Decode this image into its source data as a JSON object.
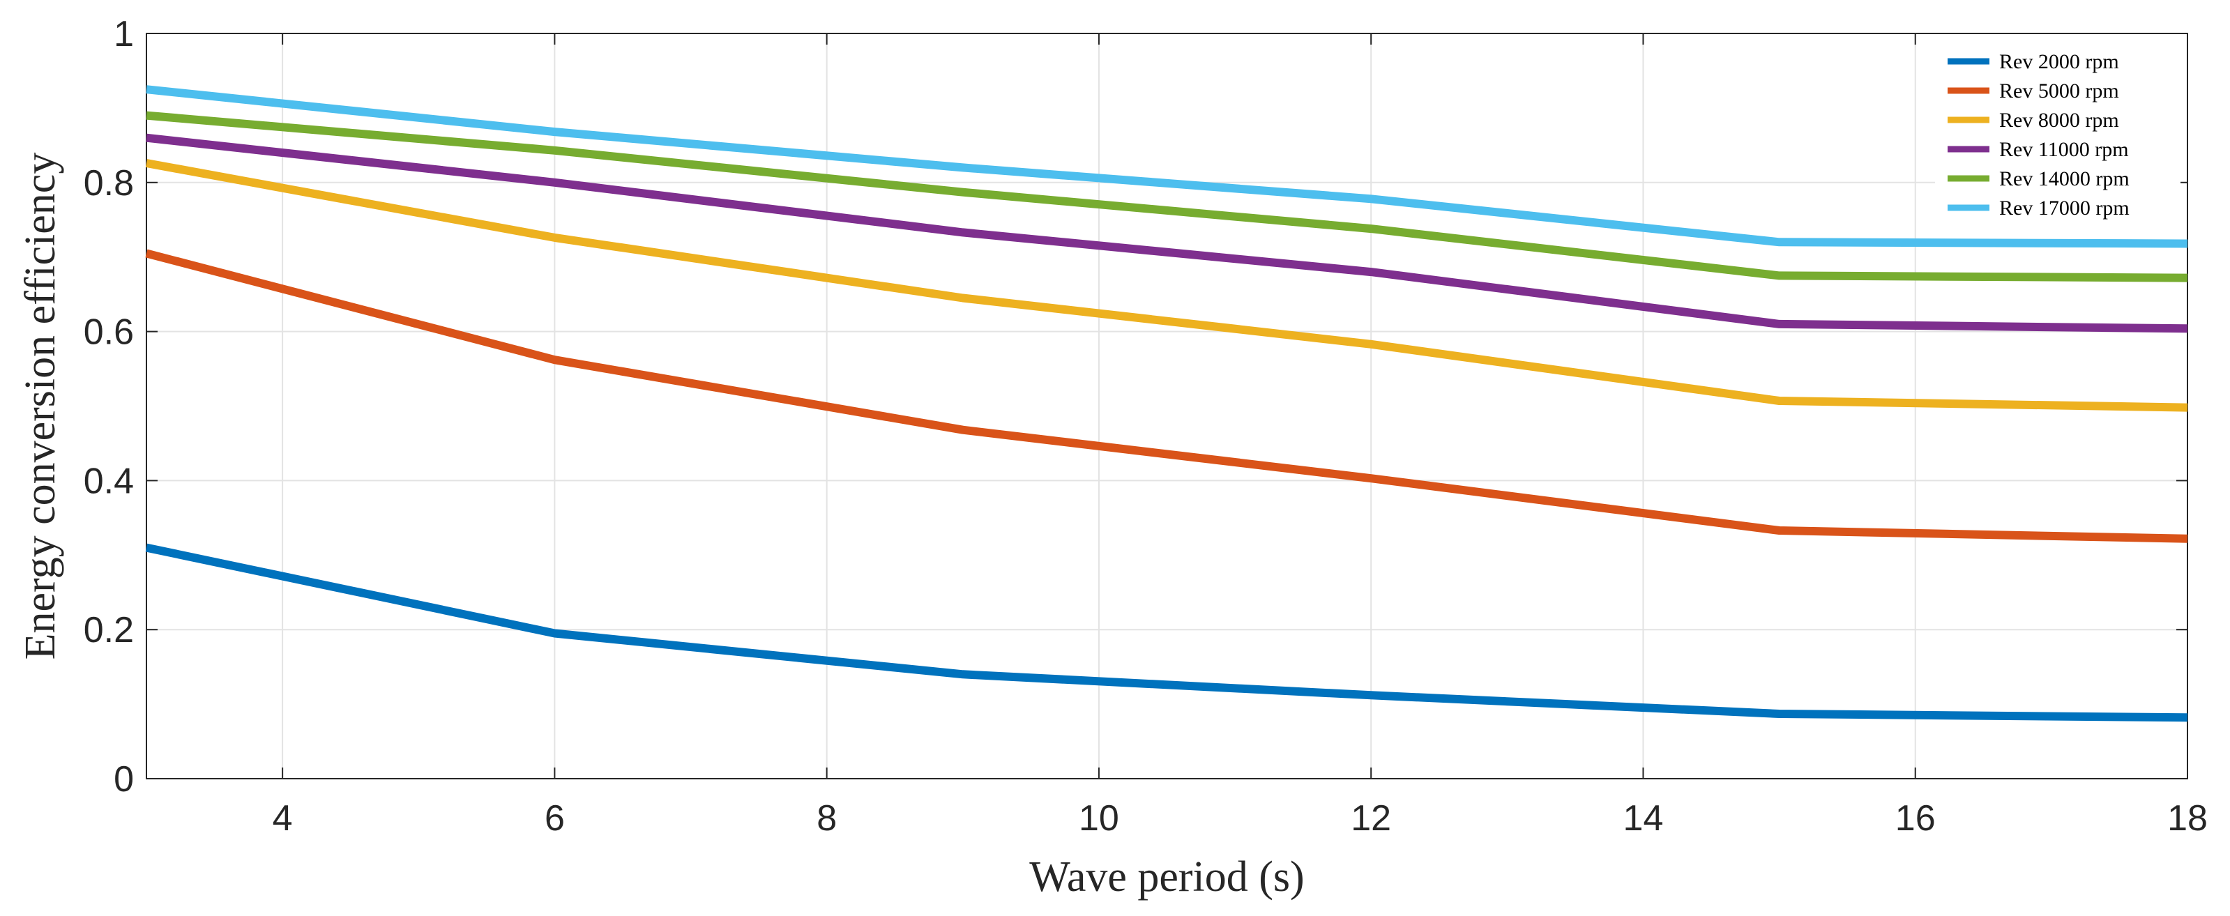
{
  "chart_data": {
    "type": "line",
    "title": "",
    "xlabel": "Wave period (s)",
    "ylabel": "Energy conversion efficiency",
    "xlim": [
      3,
      18
    ],
    "ylim": [
      0,
      1
    ],
    "xticks": [
      4,
      6,
      8,
      10,
      12,
      14,
      16,
      18
    ],
    "yticks": [
      0,
      0.2,
      0.4,
      0.6,
      0.8,
      1
    ],
    "xtick_labels": [
      "4",
      "6",
      "8",
      "10",
      "12",
      "14",
      "16",
      "18"
    ],
    "ytick_labels": [
      "0",
      "0.2",
      "0.4",
      "0.6",
      "0.8",
      "1"
    ],
    "grid": true,
    "legend_position": "top-right",
    "x": [
      3,
      6,
      9,
      12,
      15,
      18
    ],
    "series": [
      {
        "name": "Rev 2000 rpm",
        "color": "#0072BD",
        "values": [
          0.31,
          0.195,
          0.14,
          0.112,
          0.087,
          0.082
        ]
      },
      {
        "name": "Rev 5000 rpm",
        "color": "#D95319",
        "values": [
          0.705,
          0.562,
          0.468,
          0.403,
          0.333,
          0.322
        ]
      },
      {
        "name": "Rev 8000 rpm",
        "color": "#EDB120",
        "values": [
          0.826,
          0.726,
          0.645,
          0.583,
          0.507,
          0.498
        ]
      },
      {
        "name": "Rev 11000 rpm",
        "color": "#7E2F8E",
        "values": [
          0.86,
          0.8,
          0.733,
          0.68,
          0.61,
          0.604
        ]
      },
      {
        "name": "Rev 14000 rpm",
        "color": "#77AC30",
        "values": [
          0.89,
          0.843,
          0.787,
          0.738,
          0.675,
          0.672
        ]
      },
      {
        "name": "Rev 17000 rpm",
        "color": "#4DBEEE",
        "values": [
          0.925,
          0.868,
          0.82,
          0.778,
          0.72,
          0.718
        ]
      }
    ]
  }
}
